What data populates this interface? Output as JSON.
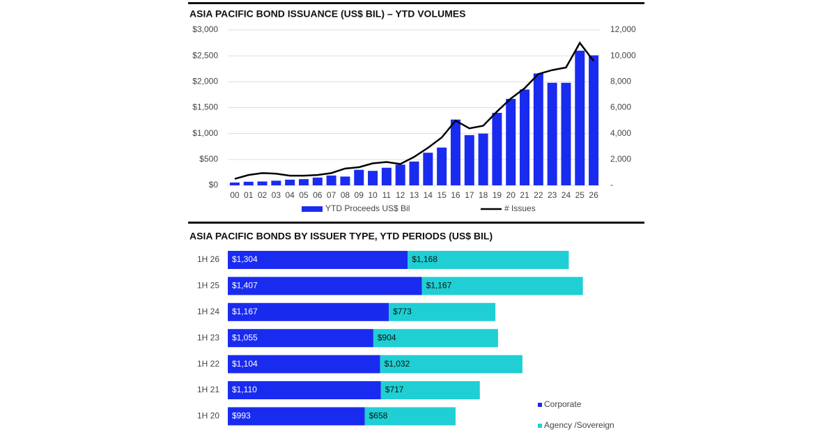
{
  "chart_data": [
    {
      "type": "bar",
      "title": "ASIA PACIFIC BOND ISSUANCE (US$ BIL) – YTD VOLUMES",
      "categories": [
        "00",
        "01",
        "02",
        "03",
        "04",
        "05",
        "06",
        "07",
        "08",
        "09",
        "10",
        "11",
        "12",
        "13",
        "14",
        "15",
        "16",
        "17",
        "18",
        "19",
        "20",
        "21",
        "22",
        "23",
        "24",
        "25",
        "26"
      ],
      "series": [
        {
          "name": "YTD Proceeds US$ Bil",
          "type": "bar",
          "color": "#1a2bf0",
          "values": [
            55,
            70,
            75,
            90,
            110,
            120,
            150,
            190,
            170,
            300,
            280,
            340,
            400,
            460,
            630,
            730,
            1270,
            970,
            1000,
            1400,
            1670,
            1850,
            2160,
            1980,
            1980,
            2600,
            2510
          ]
        },
        {
          "name": "# Issues",
          "type": "line",
          "axis": "y2",
          "color": "#000000",
          "values": [
            500,
            800,
            950,
            900,
            750,
            750,
            800,
            950,
            1300,
            1400,
            1700,
            1800,
            1650,
            2200,
            2900,
            3700,
            5000,
            4400,
            4600,
            5700,
            6700,
            7500,
            8600,
            8900,
            9100,
            11000,
            9600
          ]
        }
      ],
      "ylim": [
        0,
        3000
      ],
      "yticks": [
        {
          "value": 0,
          "label": "$0"
        },
        {
          "value": 500,
          "label": "$500"
        },
        {
          "value": 1000,
          "label": "$1,000"
        },
        {
          "value": 1500,
          "label": "$1,500"
        },
        {
          "value": 2000,
          "label": "$2,000"
        },
        {
          "value": 2500,
          "label": "$2,500"
        },
        {
          "value": 3000,
          "label": "$3,000"
        }
      ],
      "y2lim": [
        0,
        12000
      ],
      "y2ticks": [
        {
          "value": 0,
          "label": "-"
        },
        {
          "value": 2000,
          "label": "2,000"
        },
        {
          "value": 4000,
          "label": "4,000"
        },
        {
          "value": 6000,
          "label": "6,000"
        },
        {
          "value": 8000,
          "label": "8,000"
        },
        {
          "value": 10000,
          "label": "10,000"
        },
        {
          "value": 12000,
          "label": "12,000"
        }
      ],
      "grid": true
    },
    {
      "type": "stacked-barh",
      "title": "ASIA PACIFIC BONDS BY ISSUER TYPE, YTD PERIODS (US$ BIL)",
      "categories": [
        "1H 26",
        "1H 25",
        "1H 24",
        "1H 23",
        "1H 22",
        "1H 21",
        "1H 20"
      ],
      "series": [
        {
          "name": "Corporate",
          "color": "#1a2bf0",
          "values": [
            1304,
            1407,
            1167,
            1055,
            1104,
            1110,
            993
          ],
          "value_labels": [
            "$1,304",
            "$1,407",
            "$1,167",
            "$1,055",
            "$1,104",
            "$1,110",
            "$993"
          ]
        },
        {
          "name": "Agency /Sovereign",
          "color": "#1fcfd4",
          "values": [
            1168,
            1167,
            773,
            904,
            1032,
            717,
            658
          ],
          "value_labels": [
            "$1,168",
            "$1,167",
            "$773",
            "$904",
            "$1,032",
            "$717",
            "$658"
          ]
        }
      ]
    }
  ]
}
